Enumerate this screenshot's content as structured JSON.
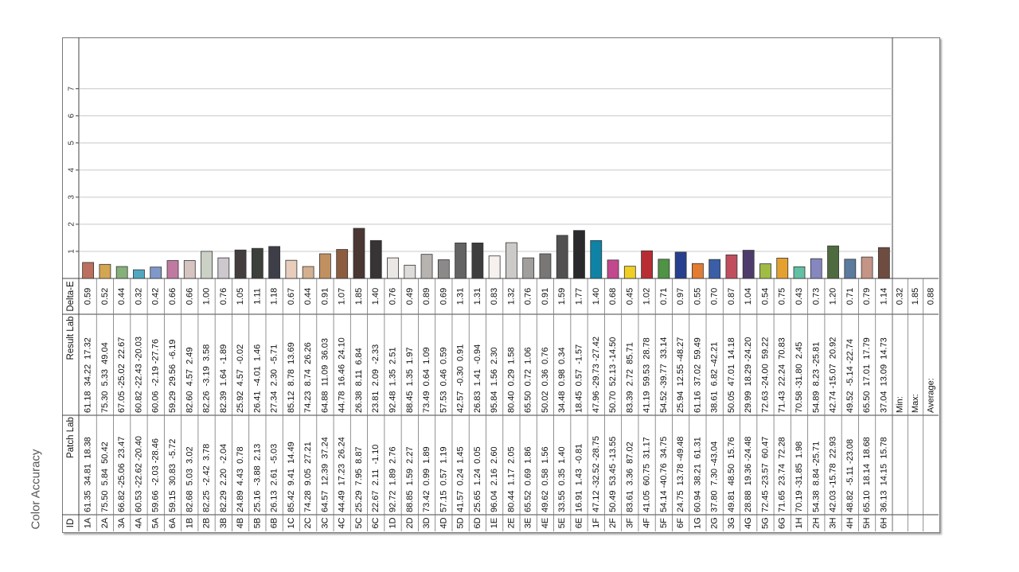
{
  "caption": "Color Accuracy",
  "chart_data": {
    "type": "bar",
    "orientation": "vertical-text-rotated",
    "y_ticks": [
      "1",
      "2",
      "3",
      "4",
      "5",
      "6",
      "7"
    ],
    "ylim": [
      0,
      8
    ],
    "grid": true,
    "headers": {
      "id": "ID",
      "patch": "Patch Lab",
      "result": "Result Lab",
      "delta": "Delta-E"
    },
    "patches": [
      {
        "id": "1A",
        "patch": "61.35  34.81  18.38",
        "result": "61.18  34.22  17.32",
        "delta": "0.59",
        "color": "#bc6f5e"
      },
      {
        "id": "2A",
        "patch": "75.50  5.84  50.42",
        "result": "75.30  5.33  49.04",
        "delta": "0.52",
        "color": "#d4a653"
      },
      {
        "id": "3A",
        "patch": "66.82 -25.06  23.47",
        "result": "67.05 -25.02  22.67",
        "delta": "0.44",
        "color": "#86b07a"
      },
      {
        "id": "4A",
        "patch": "60.53 -22.62 -20.40",
        "result": "60.82 -22.43 -20.03",
        "delta": "0.32",
        "color": "#4fa8bf"
      },
      {
        "id": "5A",
        "patch": "59.66  -2.03 -28.46",
        "result": "60.06  -2.19 -27.76",
        "delta": "0.42",
        "color": "#7f98c8"
      },
      {
        "id": "6A",
        "patch": "59.15  30.83  -5.72",
        "result": "59.29  29.56  -6.19",
        "delta": "0.66",
        "color": "#c07aa2"
      },
      {
        "id": "1B",
        "patch": "82.68  5.03  3.02",
        "result": "82.60  4.57  2.49",
        "delta": "0.66",
        "color": "#d5c4c0"
      },
      {
        "id": "2B",
        "patch": "82.25  -2.42  3.78",
        "result": "82.26  -3.19  3.58",
        "delta": "1.00",
        "color": "#ccd1c6"
      },
      {
        "id": "3B",
        "patch": "82.29  2.20  -2.04",
        "result": "82.39  1.64  -1.89",
        "delta": "0.76",
        "color": "#ccc8cd"
      },
      {
        "id": "4B",
        "patch": "24.89  4.43  0.78",
        "result": "25.92  4.57  -0.02",
        "delta": "1.05",
        "color": "#433d3d"
      },
      {
        "id": "5B",
        "patch": "25.16  -3.88  2.13",
        "result": "26.41  -4.01  1.46",
        "delta": "1.11",
        "color": "#3b403b"
      },
      {
        "id": "6B",
        "patch": "26.13  2.61  -5.03",
        "result": "27.34  2.30  -5.71",
        "delta": "1.18",
        "color": "#3d3e47"
      },
      {
        "id": "1C",
        "patch": "85.42  9.41  14.49",
        "result": "85.12  8.78  13.69",
        "delta": "0.67",
        "color": "#e8cdbc"
      },
      {
        "id": "2C",
        "patch": "74.28  9.05  27.21",
        "result": "74.23  8.74  26.26",
        "delta": "0.44",
        "color": "#d3b08f"
      },
      {
        "id": "3C",
        "patch": "64.57  12.39  37.24",
        "result": "64.88  11.09  36.03",
        "delta": "0.91",
        "color": "#c19061"
      },
      {
        "id": "4C",
        "patch": "44.49  17.23  26.24",
        "result": "44.78  16.46  24.10",
        "delta": "1.07",
        "color": "#8c5c3e"
      },
      {
        "id": "5C",
        "patch": "25.29  7.95  8.87",
        "result": "26.38  8.11  6.84",
        "delta": "1.85",
        "color": "#4a3632"
      },
      {
        "id": "6C",
        "patch": "22.67  2.11  -1.10",
        "result": "23.81  2.09  -2.33",
        "delta": "1.40",
        "color": "#383436"
      },
      {
        "id": "1D",
        "patch": "92.72  1.89  2.76",
        "result": "92.48  1.35  2.51",
        "delta": "0.76",
        "color": "#ebe7e4"
      },
      {
        "id": "2D",
        "patch": "88.85  1.59  2.27",
        "result": "88.45  1.35  1.97",
        "delta": "0.49",
        "color": "#dfdbd8"
      },
      {
        "id": "3D",
        "patch": "73.42  0.99  1.89",
        "result": "73.49  0.64  1.09",
        "delta": "0.89",
        "color": "#b6b3b1"
      },
      {
        "id": "4D",
        "patch": "57.15  0.57  1.19",
        "result": "57.53  0.46  0.59",
        "delta": "0.69",
        "color": "#8b8a89"
      },
      {
        "id": "5D",
        "patch": "41.57  0.24  1.45",
        "result": "42.57  -0.30  0.91",
        "delta": "1.31",
        "color": "#636363"
      },
      {
        "id": "6D",
        "patch": "25.65  1.24  0.05",
        "result": "26.83  1.41  -0.94",
        "delta": "1.31",
        "color": "#3d3d3e"
      },
      {
        "id": "1E",
        "patch": "96.04  2.16  2.60",
        "result": "95.84  1.56  2.30",
        "delta": "0.83",
        "color": "#f6f1ee"
      },
      {
        "id": "2E",
        "patch": "80.44  1.17  2.05",
        "result": "80.40  0.29  1.58",
        "delta": "1.32",
        "color": "#cbcac8"
      },
      {
        "id": "3E",
        "patch": "65.52  0.69  1.86",
        "result": "65.50  0.72  1.06",
        "delta": "0.76",
        "color": "#a19f9d"
      },
      {
        "id": "4E",
        "patch": "49.62  0.58  1.56",
        "result": "50.02  0.36  0.76",
        "delta": "0.91",
        "color": "#787776"
      },
      {
        "id": "5E",
        "patch": "33.55  0.35  1.40",
        "result": "34.48  0.98  0.34",
        "delta": "1.59",
        "color": "#525050"
      },
      {
        "id": "6E",
        "patch": "16.91  1.43  -0.81",
        "result": "18.45  0.57  -1.57",
        "delta": "1.77",
        "color": "#2a292b"
      },
      {
        "id": "1F",
        "patch": "47.12 -32.52 -28.75",
        "result": "47.96 -29.73 -27.42",
        "delta": "1.40",
        "color": "#0f83a6"
      },
      {
        "id": "2F",
        "patch": "50.49  53.45 -13.55",
        "result": "50.70  52.13 -14.50",
        "delta": "0.68",
        "color": "#c3478f"
      },
      {
        "id": "3F",
        "patch": "83.61  3.36  87.02",
        "result": "83.39  2.72  85.71",
        "delta": "0.45",
        "color": "#f0cf24"
      },
      {
        "id": "4F",
        "patch": "41.05  60.75  31.17",
        "result": "41.19  59.53  28.78",
        "delta": "1.02",
        "color": "#b82c34"
      },
      {
        "id": "5F",
        "patch": "54.14 -40.76  34.75",
        "result": "54.52 -39.77  33.14",
        "delta": "0.71",
        "color": "#4f9345"
      },
      {
        "id": "6F",
        "patch": "24.75  13.78 -49.48",
        "result": "25.94  12.55 -48.27",
        "delta": "0.97",
        "color": "#26408f"
      },
      {
        "id": "1G",
        "patch": "60.94  38.21  61.31",
        "result": "61.16  37.02  59.49",
        "delta": "0.55",
        "color": "#e27c32"
      },
      {
        "id": "2G",
        "patch": "37.80  7.30 -43.04",
        "result": "38.61  6.82 -42.21",
        "delta": "0.70",
        "color": "#3b5fa6"
      },
      {
        "id": "3G",
        "patch": "49.81  48.50  15.76",
        "result": "50.05  47.01  14.18",
        "delta": "0.87",
        "color": "#c14e5d"
      },
      {
        "id": "4G",
        "patch": "28.88  19.36 -24.48",
        "result": "29.99  18.29 -24.20",
        "delta": "1.04",
        "color": "#4d3c6b"
      },
      {
        "id": "5G",
        "patch": "72.45 -23.57  60.47",
        "result": "72.63 -24.00  59.22",
        "delta": "0.54",
        "color": "#a0bc45"
      },
      {
        "id": "6G",
        "patch": "71.65  23.74  72.28",
        "result": "71.43  22.24  70.83",
        "delta": "0.75",
        "color": "#e5a130"
      },
      {
        "id": "1H",
        "patch": "70.19 -31.85  1.98",
        "result": "70.58 -31.80  2.45",
        "delta": "0.43",
        "color": "#62c0a4"
      },
      {
        "id": "2H",
        "patch": "54.38  8.84 -25.71",
        "result": "54.89  8.23 -25.81",
        "delta": "0.73",
        "color": "#8587be"
      },
      {
        "id": "3H",
        "patch": "42.03 -15.78  22.93",
        "result": "42.74 -15.07  20.92",
        "delta": "1.20",
        "color": "#4e6b3f"
      },
      {
        "id": "4H",
        "patch": "48.82  -5.11 -23.08",
        "result": "49.52  -5.14 -22.74",
        "delta": "0.71",
        "color": "#5a7a9e"
      },
      {
        "id": "5H",
        "patch": "65.10  18.14  18.68",
        "result": "65.50  17.01  17.79",
        "delta": "0.79",
        "color": "#c49486"
      },
      {
        "id": "6H",
        "patch": "36.13  14.15  15.78",
        "result": "37.04  13.09  14.73",
        "delta": "1.14",
        "color": "#6e4c3f"
      }
    ],
    "summary": [
      {
        "label": "Min:",
        "value": "0.32"
      },
      {
        "label": "Max:",
        "value": "1.85"
      },
      {
        "label": "Average:",
        "value": "0.88"
      }
    ]
  }
}
